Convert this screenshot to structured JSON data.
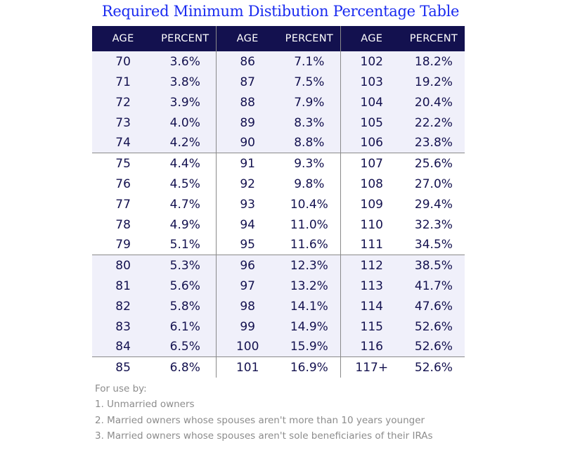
{
  "title": "Required Minimum Distibution Percentage Table",
  "headers": {
    "age": "AGE",
    "percent": "PERCENT"
  },
  "rows": [
    [
      [
        "70",
        "3.6%"
      ],
      [
        "86",
        "7.1%"
      ],
      [
        "102",
        "18.2%"
      ]
    ],
    [
      [
        "71",
        "3.8%"
      ],
      [
        "87",
        "7.5%"
      ],
      [
        "103",
        "19.2%"
      ]
    ],
    [
      [
        "72",
        "3.9%"
      ],
      [
        "88",
        "7.9%"
      ],
      [
        "104",
        "20.4%"
      ]
    ],
    [
      [
        "73",
        "4.0%"
      ],
      [
        "89",
        "8.3%"
      ],
      [
        "105",
        "22.2%"
      ]
    ],
    [
      [
        "74",
        "4.2%"
      ],
      [
        "90",
        "8.8%"
      ],
      [
        "106",
        "23.8%"
      ]
    ],
    [
      [
        "75",
        "4.4%"
      ],
      [
        "91",
        "9.3%"
      ],
      [
        "107",
        "25.6%"
      ]
    ],
    [
      [
        "76",
        "4.5%"
      ],
      [
        "92",
        "9.8%"
      ],
      [
        "108",
        "27.0%"
      ]
    ],
    [
      [
        "77",
        "4.7%"
      ],
      [
        "93",
        "10.4%"
      ],
      [
        "109",
        "29.4%"
      ]
    ],
    [
      [
        "78",
        "4.9%"
      ],
      [
        "94",
        "11.0%"
      ],
      [
        "110",
        "32.3%"
      ]
    ],
    [
      [
        "79",
        "5.1%"
      ],
      [
        "95",
        "11.6%"
      ],
      [
        "111",
        "34.5%"
      ]
    ],
    [
      [
        "80",
        "5.3%"
      ],
      [
        "96",
        "12.3%"
      ],
      [
        "112",
        "38.5%"
      ]
    ],
    [
      [
        "81",
        "5.6%"
      ],
      [
        "97",
        "13.2%"
      ],
      [
        "113",
        "41.7%"
      ]
    ],
    [
      [
        "82",
        "5.8%"
      ],
      [
        "98",
        "14.1%"
      ],
      [
        "114",
        "47.6%"
      ]
    ],
    [
      [
        "83",
        "6.1%"
      ],
      [
        "99",
        "14.9%"
      ],
      [
        "115",
        "52.6%"
      ]
    ],
    [
      [
        "84",
        "6.5%"
      ],
      [
        "100",
        "15.9%"
      ],
      [
        "116",
        "52.6%"
      ]
    ],
    [
      [
        "85",
        "6.8%"
      ],
      [
        "101",
        "16.9%"
      ],
      [
        "117+",
        "52.6%"
      ]
    ]
  ],
  "notes": [
    "For use by:",
    "1. Unmarried owners",
    "2. Married owners whose spouses aren't more than 10 years younger",
    "3. Married owners whose spouses aren't sole beneficiaries of their IRAs"
  ],
  "colors": {
    "header_bg": "#13114f",
    "title": "#1a2bf0",
    "shade": "#f0f0fa",
    "text": "#13114f"
  }
}
